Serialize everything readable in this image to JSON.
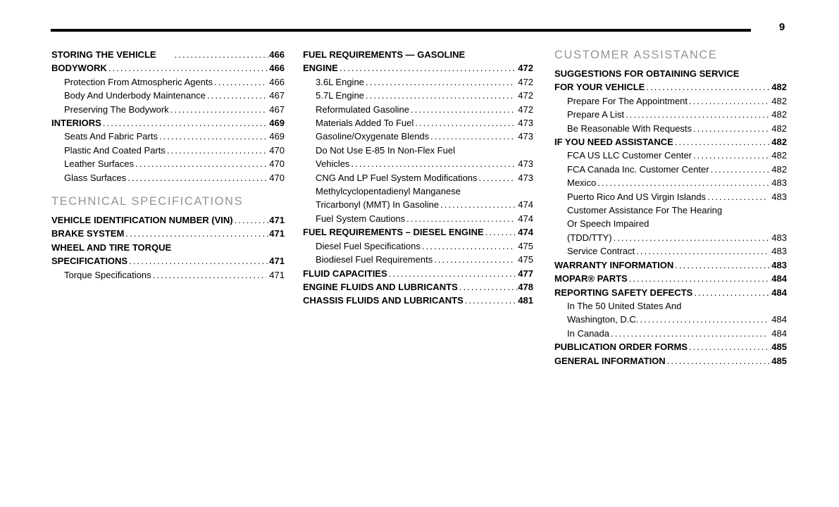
{
  "page": {
    "number": "9"
  },
  "text_color": "#000000",
  "section_header_color": "#919396",
  "columns": [
    {
      "sections": [
        {
          "header": null,
          "entries": [
            {
              "lines": [
                "STORING THE VEHICLE"
              ],
              "page": "466",
              "level": 0,
              "wide_gap": true
            },
            {
              "lines": [
                "BODYWORK"
              ],
              "page": "466",
              "level": 0
            },
            {
              "lines": [
                "Protection From Atmospheric Agents"
              ],
              "page": "466",
              "level": 1
            },
            {
              "lines": [
                "Body And Underbody Maintenance"
              ],
              "page": "467",
              "level": 1
            },
            {
              "lines": [
                "Preserving The Bodywork"
              ],
              "page": "467",
              "level": 1
            },
            {
              "lines": [
                "INTERIORS"
              ],
              "page": "469",
              "level": 0
            },
            {
              "lines": [
                "Seats And Fabric Parts"
              ],
              "page": "469",
              "level": 1
            },
            {
              "lines": [
                "Plastic And Coated Parts"
              ],
              "page": "470",
              "level": 1
            },
            {
              "lines": [
                "Leather Surfaces"
              ],
              "page": "470",
              "level": 1
            },
            {
              "lines": [
                "Glass Surfaces"
              ],
              "page": "470",
              "level": 1
            }
          ]
        },
        {
          "header": "TECHNICAL SPECIFICATIONS",
          "entries": [
            {
              "lines": [
                "VEHICLE IDENTIFICATION NUMBER (VIN)"
              ],
              "page": "471",
              "level": 0
            },
            {
              "lines": [
                "BRAKE SYSTEM"
              ],
              "page": "471",
              "level": 0
            },
            {
              "lines": [
                "WHEEL AND TIRE TORQUE",
                "SPECIFICATIONS"
              ],
              "page": "471",
              "level": 0
            },
            {
              "lines": [
                "Torque Specifications"
              ],
              "page": "471",
              "level": 1
            }
          ]
        }
      ]
    },
    {
      "sections": [
        {
          "header": null,
          "entries": [
            {
              "lines": [
                "FUEL REQUIREMENTS — GASOLINE",
                "ENGINE"
              ],
              "page": "472",
              "level": 0
            },
            {
              "lines": [
                "3.6L Engine"
              ],
              "page": "472",
              "level": 1
            },
            {
              "lines": [
                "5.7L Engine"
              ],
              "page": "472",
              "level": 1
            },
            {
              "lines": [
                "Reformulated Gasoline"
              ],
              "page": "472",
              "level": 1
            },
            {
              "lines": [
                "Materials Added To Fuel"
              ],
              "page": "473",
              "level": 1
            },
            {
              "lines": [
                "Gasoline/Oxygenate Blends"
              ],
              "page": "473",
              "level": 1
            },
            {
              "lines": [
                "Do Not Use E-85 In Non-Flex Fuel",
                "Vehicles"
              ],
              "page": "473",
              "level": 1
            },
            {
              "lines": [
                "CNG And LP Fuel System Modifications"
              ],
              "page": "473",
              "level": 1
            },
            {
              "lines": [
                "Methylcyclopentadienyl Manganese",
                "Tricarbonyl (MMT) In Gasoline"
              ],
              "page": "474",
              "level": 1
            },
            {
              "lines": [
                "Fuel System Cautions"
              ],
              "page": "474",
              "level": 1
            },
            {
              "lines": [
                "FUEL REQUIREMENTS – DIESEL ENGINE"
              ],
              "page": "474",
              "level": 0
            },
            {
              "lines": [
                "Diesel Fuel Specifications"
              ],
              "page": "475",
              "level": 1
            },
            {
              "lines": [
                "Biodiesel Fuel Requirements"
              ],
              "page": "475",
              "level": 1
            },
            {
              "lines": [
                "FLUID CAPACITIES"
              ],
              "page": "477",
              "level": 0
            },
            {
              "lines": [
                "ENGINE FLUIDS AND LUBRICANTS"
              ],
              "page": "478",
              "level": 0
            },
            {
              "lines": [
                "CHASSIS FLUIDS AND LUBRICANTS"
              ],
              "page": "481",
              "level": 0
            }
          ]
        }
      ]
    },
    {
      "sections": [
        {
          "header": "CUSTOMER ASSISTANCE",
          "entries": [
            {
              "lines": [
                "SUGGESTIONS FOR OBTAINING SERVICE",
                "FOR YOUR VEHICLE"
              ],
              "page": "482",
              "level": 0
            },
            {
              "lines": [
                "Prepare For The Appointment"
              ],
              "page": "482",
              "level": 1
            },
            {
              "lines": [
                "Prepare A List"
              ],
              "page": "482",
              "level": 1
            },
            {
              "lines": [
                "Be Reasonable With Requests"
              ],
              "page": "482",
              "level": 1
            },
            {
              "lines": [
                "IF YOU NEED ASSISTANCE"
              ],
              "page": "482",
              "level": 0
            },
            {
              "lines": [
                "FCA US LLC Customer Center"
              ],
              "page": "482",
              "level": 1
            },
            {
              "lines": [
                "FCA Canada Inc. Customer Center"
              ],
              "page": "482",
              "level": 1
            },
            {
              "lines": [
                "Mexico"
              ],
              "page": "483",
              "level": 1
            },
            {
              "lines": [
                "Puerto Rico And US Virgin Islands"
              ],
              "page": "483",
              "level": 1
            },
            {
              "lines": [
                "Customer Assistance For The Hearing",
                "Or Speech Impaired",
                "(TDD/TTY)"
              ],
              "page": "483",
              "level": 1
            },
            {
              "lines": [
                "Service Contract"
              ],
              "page": "483",
              "level": 1
            },
            {
              "lines": [
                "WARRANTY INFORMATION"
              ],
              "page": "483",
              "level": 0
            },
            {
              "lines": [
                "MOPAR® PARTS"
              ],
              "page": "484",
              "level": 0
            },
            {
              "lines": [
                "REPORTING SAFETY DEFECTS"
              ],
              "page": "484",
              "level": 0
            },
            {
              "lines": [
                "In The 50 United States And",
                "Washington, D.C."
              ],
              "page": "484",
              "level": 1
            },
            {
              "lines": [
                "In Canada"
              ],
              "page": "484",
              "level": 1
            },
            {
              "lines": [
                "PUBLICATION ORDER FORMS"
              ],
              "page": "485",
              "level": 0
            },
            {
              "lines": [
                "GENERAL INFORMATION"
              ],
              "page": "485",
              "level": 0
            }
          ]
        }
      ]
    }
  ]
}
